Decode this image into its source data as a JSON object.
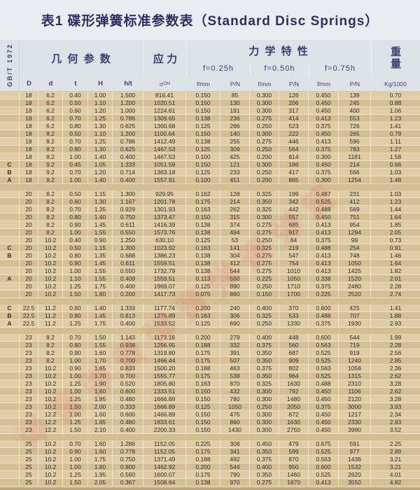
{
  "page": {
    "title": "表1 碟形弹簧标准参数表（Standard Disc Springs）",
    "standard": "GB/T 1972"
  },
  "colors": {
    "title_navy": "#322d63",
    "header_blue_gray": "#dde2e9",
    "table_tan_light": "#e0cda6",
    "table_tan_dark": "#d6bf94",
    "watermark_red": "#cd3c46"
  },
  "watermark": "弹簧弹簧弹簧弹簧弹簧",
  "header": {
    "geometry_group": "几 何 参 数",
    "stress_group": "应 力",
    "mechanical_group": "力 学 特 性",
    "weight_char1": "重",
    "weight_char2": "量",
    "deflection_labels": [
      "f=0.25h",
      "f=0.50h",
      "f=0.75h"
    ],
    "sigma_base": "σ",
    "sigma_sub": "OM",
    "columns": {
      "D": "D",
      "d": "d",
      "t": "t",
      "H": "H",
      "ht": "h/t",
      "f": "f/mm",
      "p": "P/N",
      "weight": "Kg/1000"
    }
  },
  "table": {
    "blocks": [
      {
        "rows": [
          [
            "",
            "18",
            "6.2",
            "0.40",
            "1.00",
            "1.500",
            "816.41",
            "0.150",
            "85",
            "0.300",
            "126",
            "0.450",
            "139",
            "0.70"
          ],
          [
            "",
            "18",
            "6.2",
            "0.50",
            "1.10",
            "1.200",
            "1020.51",
            "0.150",
            "130",
            "0.300",
            "206",
            "0.450",
            "245",
            "0.88"
          ],
          [
            "",
            "18",
            "6.2",
            "0.60",
            "1.20",
            "1.000",
            "1224.61",
            "0.150",
            "191",
            "0.300",
            "317",
            "0.450",
            "400",
            "1.06"
          ],
          [
            "",
            "18",
            "6.2",
            "0.70",
            "1.25",
            "0.786",
            "1309.65",
            "0.138",
            "236",
            "0.275",
            "414",
            "0.413",
            "553",
            "1.23"
          ],
          [
            "",
            "18",
            "6.2",
            "0.80",
            "1.30",
            "0.625",
            "1360.68",
            "0.125",
            "286",
            "0.250",
            "523",
            "0.375",
            "726",
            "1.41"
          ],
          [
            "",
            "18",
            "8.2",
            "0.50",
            "1.10",
            "1.200",
            "1100.64",
            "0.150",
            "140",
            "0.300",
            "222",
            "0.450",
            "265",
            "0.79"
          ],
          [
            "",
            "18",
            "8.2",
            "0.70",
            "1.25",
            "0.786",
            "1412.49",
            "0.138",
            "255",
            "0.275",
            "446",
            "0.413",
            "596",
            "1.11"
          ],
          [
            "",
            "18",
            "8.2",
            "0.80",
            "1.30",
            "0.625",
            "1467.53",
            "0.125",
            "309",
            "0.250",
            "564",
            "0.375",
            "783",
            "1.27"
          ],
          [
            "",
            "18",
            "8.2",
            "1.00",
            "1.40",
            "0.400",
            "1467.53",
            "0.100",
            "425",
            "0.200",
            "814",
            "0.300",
            "1181",
            "1.58"
          ],
          [
            "C",
            "18",
            "9.2",
            "0.45",
            "1.05",
            "1.333",
            "1051.59",
            "0.150",
            "121",
            "0.300",
            "186",
            "0.450",
            "214",
            "0.66"
          ],
          [
            "B",
            "18",
            "9.2",
            "0.70",
            "1.20",
            "0.714",
            "1363.18",
            "0.125",
            "233",
            "0.250",
            "417",
            "0.375",
            "566",
            "1.03"
          ],
          [
            "A",
            "18",
            "9.2",
            "1.00",
            "1.40",
            "0.400",
            "1557.91",
            "0.100",
            "451",
            "0.200",
            "865",
            "0.300",
            "1254",
            "1.48"
          ]
        ]
      },
      {
        "rows": [
          [
            "",
            "20",
            "8.2",
            "0.50",
            "1.15",
            "1.300",
            "929.95",
            "0.162",
            "128",
            "0.325",
            "199",
            "0.487",
            "231",
            "1.03"
          ],
          [
            "",
            "20",
            "8.2",
            "0.60",
            "1.30",
            "1.167",
            "1201.78",
            "0.175",
            "214",
            "0.350",
            "342",
            "0.525",
            "412",
            "1.23"
          ],
          [
            "",
            "20",
            "8.2",
            "0.70",
            "1.35",
            "0.929",
            "1301.93",
            "0.163",
            "262",
            "0.325",
            "442",
            "0.488",
            "569",
            "1.44"
          ],
          [
            "",
            "20",
            "8.2",
            "0.80",
            "1.40",
            "0.750",
            "1373.47",
            "0.150",
            "315",
            "0.300",
            "557",
            "0.450",
            "751",
            "1.64"
          ],
          [
            "",
            "20",
            "8.2",
            "0.90",
            "1.45",
            "0.611",
            "1416.39",
            "0.138",
            "374",
            "0.275",
            "685",
            "0.413",
            "954",
            "1.85"
          ],
          [
            "",
            "20",
            "8.2",
            "1.00",
            "1.55",
            "0.550",
            "1573.76",
            "0.138",
            "494",
            "0.275",
            "917",
            "0.413",
            "1294",
            "2.05"
          ],
          [
            "",
            "20",
            "10.2",
            "0.40",
            "0.90",
            "1.250",
            "630.10",
            "0.125",
            "53",
            "0.250",
            "84",
            "0.375",
            "99",
            "0.73"
          ],
          [
            "C",
            "20",
            "10.2",
            "0.50",
            "1.15",
            "1.300",
            "1023.92",
            "0.163",
            "141",
            "0.325",
            "219",
            "0.488",
            "254",
            "0.91"
          ],
          [
            "B",
            "20",
            "10.2",
            "0.80",
            "1.35",
            "0.688",
            "1386.23",
            "0.138",
            "304",
            "0.275",
            "547",
            "0.413",
            "748",
            "1.46"
          ],
          [
            "",
            "20",
            "10.2",
            "0.90",
            "1.45",
            "0.611",
            "1559.51",
            "0.138",
            "412",
            "0.275",
            "754",
            "0.413",
            "1050",
            "1.64"
          ],
          [
            "",
            "20",
            "10.2",
            "1.00",
            "1.55",
            "0.550",
            "1732.79",
            "0.138",
            "544",
            "0.275",
            "1010",
            "0.413",
            "1425",
            "1.82"
          ],
          [
            "A",
            "20",
            "10.2",
            "1.10",
            "1.55",
            "0.409",
            "1559.51",
            "0.113",
            "550",
            "0.225",
            "1050",
            "0.338",
            "1520",
            "2.01"
          ],
          [
            "",
            "20",
            "10.2",
            "1.25",
            "1.75",
            "0.400",
            "1969.07",
            "0.125",
            "890",
            "0.250",
            "1710",
            "0.375",
            "2480",
            "2.28"
          ],
          [
            "",
            "20",
            "10.2",
            "1.50",
            "1.80",
            "0.200",
            "1417.73",
            "0.075",
            "860",
            "0.150",
            "1700",
            "0.225",
            "2520",
            "2.74"
          ]
        ]
      },
      {
        "rows": [
          [
            "C",
            "22.5",
            "11.2",
            "0.60",
            "1.40",
            "1.333",
            "1177.74",
            "0.200",
            "240",
            "0.400",
            "370",
            "0.600",
            "425",
            "1.41"
          ],
          [
            "B",
            "22.5",
            "11.2",
            "0.80",
            "1.45",
            "0.813",
            "1275.89",
            "0.163",
            "306",
            "0.325",
            "533",
            "0.488",
            "707",
            "1.88"
          ],
          [
            "A",
            "22.5",
            "11.2",
            "1.25",
            "1.75",
            "0.400",
            "1533.52",
            "0.125",
            "690",
            "0.250",
            "1330",
            "0.375",
            "1930",
            "2.93"
          ]
        ]
      },
      {
        "rows": [
          [
            "",
            "23",
            "8.2",
            "0.70",
            "1.50",
            "1.143",
            "1173.16",
            "0.200",
            "279",
            "0.400",
            "448",
            "0.600",
            "544",
            "1.99"
          ],
          [
            "",
            "23",
            "8.2",
            "0.80",
            "1.55",
            "0.938",
            "1256.95",
            "0.188",
            "332",
            "0.375",
            "560",
            "0.563",
            "719",
            "2.28"
          ],
          [
            "",
            "23",
            "8.2",
            "0.90",
            "1.60",
            "0.778",
            "1319.80",
            "0.175",
            "391",
            "0.350",
            "687",
            "0.525",
            "919",
            "2.56"
          ],
          [
            "",
            "23",
            "8.2",
            "1.00",
            "1.70",
            "0.700",
            "1466.44",
            "0.175",
            "507",
            "0.350",
            "909",
            "0.525",
            "1240",
            "2.85"
          ],
          [
            "",
            "23",
            "10.2",
            "0.90",
            "1.65",
            "0.833",
            "1500.20",
            "0.188",
            "463",
            "0.375",
            "802",
            "0.563",
            "1058",
            "2.36"
          ],
          [
            "",
            "23",
            "10.2",
            "1.00",
            "1.70",
            "0.700",
            "1555.77",
            "0.175",
            "538",
            "0.350",
            "964",
            "0.525",
            "1315",
            "2.62"
          ],
          [
            "",
            "23",
            "10.2",
            "1.25",
            "1.90",
            "0.520",
            "1805.80",
            "0.163",
            "870",
            "0.325",
            "1630",
            "0.488",
            "2310",
            "3.28"
          ],
          [
            "",
            "23",
            "10.2",
            "1.00",
            "1.60",
            "0.600",
            "1333.51",
            "0.150",
            "432",
            "0.300",
            "792",
            "0.450",
            "1106",
            "2.62"
          ],
          [
            "",
            "23",
            "10.2",
            "1.25",
            "1.85",
            "0.480",
            "1666.89",
            "0.150",
            "780",
            "0.300",
            "1480",
            "0.450",
            "2120",
            "3.28"
          ],
          [
            "",
            "23",
            "10.2",
            "1.50",
            "2.00",
            "0.333",
            "1666.89",
            "0.125",
            "1050",
            "0.250",
            "2050",
            "0.375",
            "3000",
            "3.93"
          ],
          [
            "",
            "23",
            "12.2",
            "1.00",
            "1.60",
            "0.600",
            "1466.89",
            "0.150",
            "475",
            "0.300",
            "872",
            "0.450",
            "1217",
            "2.34"
          ],
          [
            "",
            "23",
            "12.2",
            "1.25",
            "1.85",
            "0.480",
            "1833.61",
            "0.150",
            "860",
            "0.300",
            "1630",
            "0.450",
            "2330",
            "2.93"
          ],
          [
            "",
            "23",
            "12.2",
            "1.50",
            "2.10",
            "0.400",
            "2200.33",
            "0.150",
            "1430",
            "0.300",
            "2750",
            "0.450",
            "3990",
            "3.52"
          ]
        ]
      },
      {
        "rows": [
          [
            "",
            "25",
            "10.2",
            "0.70",
            "1.60",
            "1.286",
            "1152.05",
            "0.225",
            "308",
            "0.450",
            "479",
            "0.675",
            "591",
            "2.25"
          ],
          [
            "",
            "25",
            "10.2",
            "0.90",
            "1.60",
            "0.778",
            "1152.05",
            "0.175",
            "341",
            "0.350",
            "599",
            "0.525",
            "977",
            "2.89"
          ],
          [
            "",
            "25",
            "10.2",
            "1.00",
            "1.75",
            "0.750",
            "1371.49",
            "0.188",
            "492",
            "0.375",
            "870",
            "0.563",
            "1436",
            "3.21"
          ],
          [
            "",
            "25",
            "10.2",
            "1.00",
            "1.80",
            "0.800",
            "1462.92",
            "0.200",
            "544",
            "0.400",
            "950",
            "0.600",
            "1532",
            "3.21"
          ],
          [
            "",
            "25",
            "10.2",
            "1.25",
            "1.95",
            "0.560",
            "1600.07",
            "0.175",
            "790",
            "0.350",
            "1460",
            "0.525",
            "2620",
            "4.01"
          ],
          [
            "",
            "25",
            "10.2",
            "1.50",
            "2.05",
            "0.367",
            "1508.64",
            "0.138",
            "970",
            "0.275",
            "1870",
            "0.413",
            "3550",
            "4.82"
          ]
        ]
      }
    ]
  }
}
